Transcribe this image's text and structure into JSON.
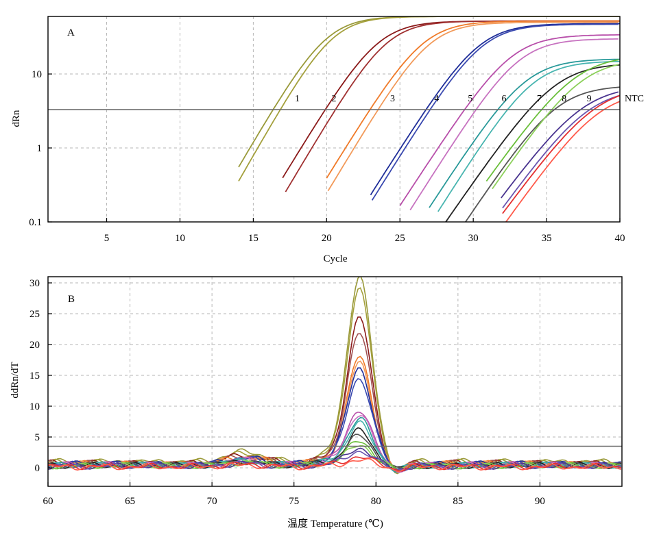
{
  "chart_data": [
    {
      "type": "line",
      "panel_label": "A",
      "xlabel": "Cycle",
      "ylabel": "dRn",
      "y_scale": "log",
      "xlim": [
        1,
        40
      ],
      "ylim": [
        0.1,
        60
      ],
      "x_ticks": [
        5,
        10,
        15,
        20,
        25,
        30,
        35,
        40
      ],
      "y_ticks": [
        0.1,
        1,
        10
      ],
      "y_tick_labels": [
        "0.1",
        "1",
        "10"
      ],
      "grid": true,
      "threshold": 3.3,
      "curve_labels": [
        {
          "text": "1",
          "x": 18.0
        },
        {
          "text": "2",
          "x": 20.5
        },
        {
          "text": "3",
          "x": 24.5
        },
        {
          "text": "4",
          "x": 27.5
        },
        {
          "text": "5",
          "x": 29.8
        },
        {
          "text": "6",
          "x": 32.1
        },
        {
          "text": "7",
          "x": 34.5
        },
        {
          "text": "8",
          "x": 36.2
        },
        {
          "text": "9",
          "x": 37.9
        },
        {
          "text": "NTC",
          "x": 41.0
        }
      ],
      "series": [
        {
          "color": "#9a9a3a",
          "x0": 14.0,
          "mid": 20.0,
          "plateau": 60,
          "k": 0.78
        },
        {
          "color": "#a4a03c",
          "x0": 14.0,
          "mid": 20.4,
          "plateau": 60,
          "k": 0.8
        },
        {
          "color": "#8b1a1a",
          "x0": 17.0,
          "mid": 23.5,
          "plateau": 52,
          "k": 0.75
        },
        {
          "color": "#a03030",
          "x0": 17.2,
          "mid": 24.1,
          "plateau": 52,
          "k": 0.77
        },
        {
          "color": "#f07a28",
          "x0": 20.0,
          "mid": 26.6,
          "plateau": 52,
          "k": 0.74
        },
        {
          "color": "#f29a5a",
          "x0": 20.1,
          "mid": 27.0,
          "plateau": 50,
          "k": 0.76
        },
        {
          "color": "#1f2e99",
          "x0": 23.0,
          "mid": 30.4,
          "plateau": 48,
          "k": 0.72
        },
        {
          "color": "#3a49b0",
          "x0": 23.1,
          "mid": 30.6,
          "plateau": 47,
          "k": 0.73
        },
        {
          "color": "#b84faa",
          "x0": 25.0,
          "mid": 32.6,
          "plateau": 34,
          "k": 0.7
        },
        {
          "color": "#c772c0",
          "x0": 25.7,
          "mid": 33.1,
          "plateau": 30,
          "k": 0.72
        },
        {
          "color": "#2a9a9a",
          "x0": 27.0,
          "mid": 33.6,
          "plateau": 16,
          "k": 0.7
        },
        {
          "color": "#48b5b0",
          "x0": 27.6,
          "mid": 34.1,
          "plateau": 15,
          "k": 0.72
        },
        {
          "color": "#222222",
          "x0": 28.0,
          "mid": 35.6,
          "plateau": 14,
          "k": 0.66
        },
        {
          "color": "#555555",
          "x0": 29.0,
          "mid": 35.7,
          "plateau": 7,
          "k": 0.68
        },
        {
          "color": "#6abf3a",
          "x0": 30.9,
          "mid": 37.0,
          "plateau": 18,
          "k": 0.64
        },
        {
          "color": "#8cd05a",
          "x0": 31.3,
          "mid": 37.4,
          "plateau": 16,
          "k": 0.66
        },
        {
          "color": "#4a3590",
          "x0": 31.9,
          "mid": 37.5,
          "plateau": 7,
          "k": 0.62
        },
        {
          "color": "#6a55b0",
          "x0": 32.0,
          "mid": 37.9,
          "plateau": 6.5,
          "k": 0.63
        },
        {
          "color": "#e53030",
          "x0": 32.0,
          "mid": 38.4,
          "plateau": 7,
          "k": 0.62
        },
        {
          "color": "#ff5a4a",
          "x0": 32.2,
          "mid": 38.6,
          "plateau": 6,
          "k": 0.64
        }
      ]
    },
    {
      "type": "line",
      "panel_label": "B",
      "xlabel": "温度 Temperature (℃)",
      "ylabel": "ddRn/dT",
      "xlim": [
        60,
        95
      ],
      "ylim": [
        -3,
        31
      ],
      "x_ticks": [
        60,
        65,
        70,
        75,
        80,
        85,
        90
      ],
      "y_ticks": [
        0,
        5,
        10,
        15,
        20,
        25,
        30
      ],
      "grid": true,
      "threshold": 3.5,
      "series": [
        {
          "color": "#9a9a3a",
          "peak": 30.0,
          "base": 1.8
        },
        {
          "color": "#a4a03c",
          "peak": 28.0,
          "base": 1.6
        },
        {
          "color": "#8b1a1a",
          "peak": 23.5,
          "base": 1.4
        },
        {
          "color": "#a05050",
          "peak": 21.0,
          "base": 1.3
        },
        {
          "color": "#f07a28",
          "peak": 17.3,
          "base": 1.2
        },
        {
          "color": "#f29a5a",
          "peak": 16.5,
          "base": 1.1
        },
        {
          "color": "#1f2e99",
          "peak": 15.5,
          "base": 1.1
        },
        {
          "color": "#3a49b0",
          "peak": 14.0,
          "base": 1.0
        },
        {
          "color": "#b84faa",
          "peak": 8.9,
          "base": 0.9
        },
        {
          "color": "#c772c0",
          "peak": 8.2,
          "base": 0.9
        },
        {
          "color": "#2a9a9a",
          "peak": 7.5,
          "base": 0.8
        },
        {
          "color": "#48b5b0",
          "peak": 6.7,
          "base": 0.8
        },
        {
          "color": "#222222",
          "peak": 5.6,
          "base": 0.7
        },
        {
          "color": "#555555",
          "peak": 4.8,
          "base": 0.7
        },
        {
          "color": "#6abf3a",
          "peak": 4.0,
          "base": 0.6
        },
        {
          "color": "#8cd05a",
          "peak": 3.4,
          "base": 0.6
        },
        {
          "color": "#4a3590",
          "peak": 2.9,
          "base": 0.5
        },
        {
          "color": "#6a55b0",
          "peak": 2.4,
          "base": 0.5
        },
        {
          "color": "#e53030",
          "peak": 1.6,
          "base": 0.4
        },
        {
          "color": "#ff5a4a",
          "peak": 1.1,
          "base": 0.3
        }
      ]
    }
  ]
}
